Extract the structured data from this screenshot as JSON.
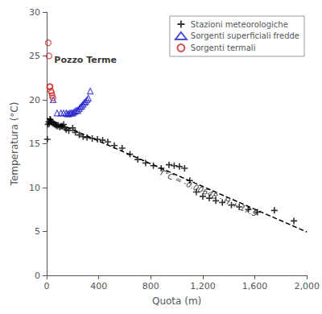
{
  "chart_data": {
    "type": "scatter",
    "xlabel": "Quota (m)",
    "ylabel": "Temperatura (°C)",
    "xlim": [
      0,
      2000
    ],
    "ylim": [
      0,
      30
    ],
    "xticks": [
      0,
      400,
      800,
      1200,
      1600,
      2000
    ],
    "yticks": [
      0,
      5,
      10,
      15,
      20,
      25,
      30
    ],
    "grid": false,
    "legend": "upper right",
    "series": [
      {
        "name": "Stazioni meteorologiche",
        "type": "scatter",
        "marker": "plus",
        "color": "#000000",
        "x": [
          5,
          10,
          15,
          20,
          25,
          30,
          35,
          40,
          50,
          60,
          70,
          80,
          90,
          100,
          110,
          120,
          130,
          140,
          150,
          170,
          200,
          220,
          250,
          280,
          310,
          350,
          390,
          430,
          470,
          520,
          580,
          640,
          700,
          760,
          820,
          880,
          940,
          980,
          1020,
          1060,
          1100,
          1150,
          1200,
          1250,
          1300,
          1350,
          1420,
          1480,
          1550,
          1620,
          1750,
          1900
        ],
        "values": [
          15.5,
          17.2,
          17.5,
          17.3,
          17.8,
          17.7,
          17.5,
          17.4,
          17.3,
          17.2,
          17.1,
          17.0,
          17.1,
          16.9,
          17.0,
          17.0,
          17.2,
          16.8,
          16.6,
          16.5,
          16.8,
          16.3,
          16.0,
          15.8,
          15.7,
          15.6,
          15.5,
          15.4,
          15.2,
          14.8,
          14.5,
          13.8,
          13.2,
          12.8,
          12.5,
          12.2,
          12.6,
          12.5,
          12.4,
          12.2,
          10.8,
          9.5,
          9.0,
          8.8,
          8.5,
          8.3,
          8.0,
          7.8,
          7.5,
          7.2,
          7.4,
          6.2
        ]
      },
      {
        "name": "Sorgenti superficiali fredde",
        "type": "scatter",
        "marker": "triangle-open",
        "color": "#2222cc",
        "x": [
          50,
          80,
          110,
          130,
          150,
          160,
          170,
          180,
          190,
          200,
          210,
          220,
          230,
          240,
          250,
          260,
          270,
          280,
          290,
          300,
          310,
          320,
          335
        ],
        "values": [
          20.0,
          18.5,
          18.5,
          18.5,
          18.5,
          18.4,
          18.4,
          18.5,
          18.5,
          18.5,
          18.6,
          18.7,
          18.8,
          18.8,
          19.0,
          19.2,
          19.3,
          19.5,
          19.7,
          19.8,
          20.0,
          20.2,
          21.0
        ]
      },
      {
        "name": "Sorgenti termali",
        "type": "scatter",
        "marker": "circle-open",
        "color": "#cc2222",
        "x": [
          12,
          18,
          22,
          27,
          32,
          38,
          42,
          48
        ],
        "values": [
          26.5,
          25.0,
          21.5,
          21.5,
          21.0,
          20.8,
          20.5,
          20.2
        ]
      },
      {
        "type": "line",
        "line_style": "dashed",
        "color": "#000000",
        "x": [
          0,
          2000
        ],
        "values": [
          17.9,
          4.94
        ]
      }
    ],
    "annotations": [
      {
        "text": "T°C = -0.00648 · H + 17.9",
        "x": 870,
        "y": 11.8
      },
      {
        "text": "Pozzo Terme",
        "x": 58,
        "y": 24.5
      }
    ]
  }
}
